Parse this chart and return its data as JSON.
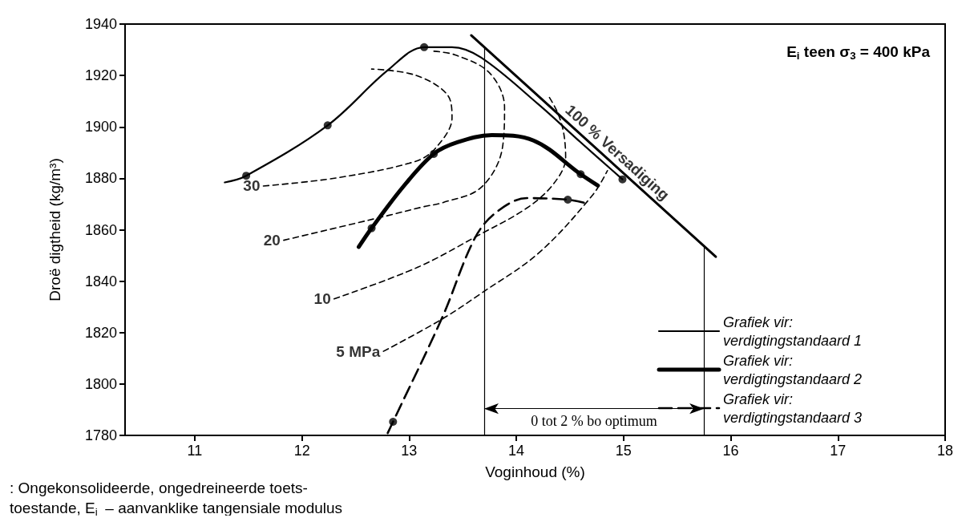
{
  "chart_data": {
    "type": "line",
    "title": "E$_{i}$ teen σ$_{3}$ = 400 kPa",
    "xlabel": "Voginhoud (%)",
    "ylabel": "Droë digtheid (kg/m³)",
    "xlim": [
      10.35,
      18
    ],
    "xticks": [
      11,
      12,
      13,
      14,
      15,
      16,
      17,
      18
    ],
    "ylim": [
      1780,
      1940
    ],
    "yticks": [
      1780,
      1800,
      1820,
      1840,
      1860,
      1880,
      1900,
      1920,
      1940
    ],
    "grid": false,
    "legend": "bottom right",
    "series": [
      {
        "name": "Grafiek vir: verdigtingstandaard 1",
        "color": "#000000",
        "line_style": "solid",
        "x": [
          11.28,
          11.48,
          12.24,
          12.8,
          13.14,
          13.4,
          13.67,
          14.2,
          14.6,
          14.99
        ],
        "values": [
          1878.4,
          1881,
          1900.6,
          1922,
          1931,
          1931,
          1927,
          1909,
          1894,
          1879.6
        ]
      },
      {
        "name": "Grafiek vir: verdigtingstandaard 2",
        "color": "#000000",
        "line_style": "solid",
        "x": [
          12.53,
          12.65,
          12.95,
          13.23,
          13.45,
          13.77,
          14.16,
          14.6,
          14.76
        ],
        "values": [
          1853.3,
          1860.6,
          1877,
          1889.5,
          1894,
          1896.8,
          1894.7,
          1881.6,
          1877.2
        ]
      },
      {
        "name": "Grafiek vir: verdigtingstandaard 3",
        "color": "#000000",
        "line_style": "dashed",
        "x": [
          12.8,
          12.85,
          13.31,
          13.61,
          13.81,
          14.1,
          14.48,
          14.63
        ],
        "values": [
          1780.9,
          1785.3,
          1826,
          1856.5,
          1866.7,
          1872.3,
          1871.7,
          1870.5
        ]
      },
      {
        "color": "#000000",
        "line_style": "dashed",
        "x": [
          11.64,
          12.33,
          13.06,
          13.25,
          13.4,
          13.36,
          13.06,
          12.65
        ],
        "values": [
          1877,
          1880.2,
          1886.6,
          1891.9,
          1903.5,
          1912.3,
          1920.1,
          1922.5
        ]
      },
      {
        "color": "#000000",
        "line_style": "dashed",
        "x": [
          11.83,
          12.8,
          13.14,
          13.31,
          13.67,
          13.87,
          13.89,
          13.75,
          13.43,
          13.21
        ],
        "values": [
          1855.9,
          1865.5,
          1869,
          1870.5,
          1876.4,
          1891.8,
          1907.6,
          1921,
          1928,
          1929.5
        ]
      },
      {
        "color": "#000000",
        "line_style": "dashed",
        "x": [
          12.3,
          13.08,
          13.64,
          14.1,
          14.35,
          14.46,
          14.44,
          14.38,
          14.3
        ],
        "values": [
          1833.1,
          1845.4,
          1857.7,
          1868.5,
          1878,
          1888,
          1898,
          1906,
          1912
        ]
      },
      {
        "color": "#000000",
        "line_style": "dashed",
        "x": [
          12.76,
          13.31,
          13.67,
          14.21,
          14.71,
          14.85
        ],
        "values": [
          1812.7,
          1825.3,
          1835.2,
          1851,
          1873.4,
          1883
        ]
      },
      {
        "color": "#000000",
        "line_style": "solid",
        "x": [
          13.58,
          15.86
        ],
        "values": [
          1935.6,
          1849.5
        ]
      },
      {
        "type": "scatter",
        "marker": "circle",
        "color": "#000000",
        "x": [
          11.48,
          12.24,
          13.14,
          12.65,
          13.23,
          14.6,
          14.99,
          12.85,
          14.48
        ],
        "values": [
          1881,
          1900.6,
          1931,
          1860.6,
          1889.5,
          1881.6,
          1879.6,
          1785.3,
          1871.7
        ]
      }
    ],
    "ref_lines": [
      {
        "axis": "x",
        "value": 13.7,
        "label": null
      },
      {
        "axis": "x",
        "value": 15.75,
        "label": null
      }
    ],
    "annotations": [
      {
        "text": "30",
        "x": 11.64,
        "y": 1877
      },
      {
        "text": "20",
        "x": 11.83,
        "y": 1855.9
      },
      {
        "text": "10",
        "x": 12.3,
        "y": 1833.1
      },
      {
        "text": "5 MPa",
        "x": 12.76,
        "y": 1812.7
      },
      {
        "text": "100 % Versadiging",
        "x": 14.85,
        "y": 1887.7
      },
      "0 tot 2 % bo optimum",
      ": Ongekonsolideerde, ongedreineerde toets- toestande, E$_{i}$ – aanvanklike tangensiale modulus"
    ]
  }
}
